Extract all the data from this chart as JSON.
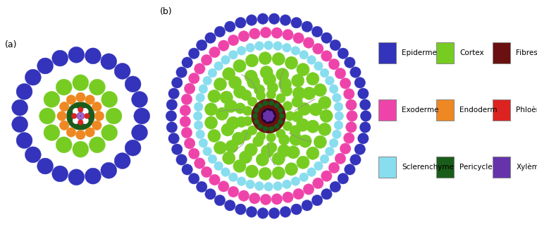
{
  "title_a": "(a)",
  "title_b": "(b)",
  "background_color": "#ffffff",
  "legend_items": [
    {
      "label": "Epiderme",
      "color": "#3333bb"
    },
    {
      "label": "Cortex",
      "color": "#77cc22"
    },
    {
      "label": "Fibres",
      "color": "#6b1010"
    },
    {
      "label": "Exoderme",
      "color": "#ee44aa"
    },
    {
      "label": "Endoderm",
      "color": "#ee8822"
    },
    {
      "label": "Phloème",
      "color": "#dd2222"
    },
    {
      "label": "Sclerenchyme",
      "color": "#88ddee"
    },
    {
      "label": "Pericycle",
      "color": "#1a5c1a"
    },
    {
      "label": "Xylème",
      "color": "#6633aa"
    }
  ]
}
